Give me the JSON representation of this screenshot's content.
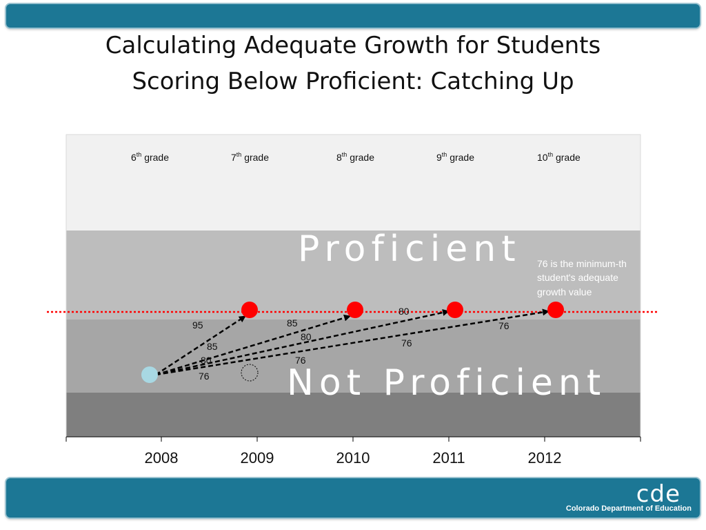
{
  "slide": {
    "title_line1": "Calculating Adequate Growth for Students",
    "title_line2": "Scoring Below Proficient: Catching Up"
  },
  "grades": [
    {
      "base": "6",
      "sup": "th",
      "word": " grade"
    },
    {
      "base": "7",
      "sup": "th",
      "word": " grade"
    },
    {
      "base": "8",
      "sup": "th",
      "word": " grade"
    },
    {
      "base": "9",
      "sup": "th",
      "word": " grade"
    },
    {
      "base": "10",
      "sup": "th",
      "word": " grade"
    }
  ],
  "years": [
    "2008",
    "2009",
    "2010",
    "2011",
    "2012"
  ],
  "bands": {
    "proficient": "Proficient",
    "not_proficient": "Not Proficient"
  },
  "note_lines": [
    "76 is the minimum-th",
    "student's adequate",
    "growth value"
  ],
  "arrow_labels": {
    "to2009": [
      "95",
      "85",
      "80",
      "76"
    ],
    "to2010": [
      "85",
      "80",
      "76"
    ],
    "to2011": [
      "80",
      "76"
    ],
    "to2012": [
      "76"
    ]
  },
  "colors": {
    "bar": "#1c7795",
    "target_point": "#ff0000",
    "start_point": "#a8d8e3",
    "target_line": "#ff0000"
  },
  "footer": {
    "logo": "cde",
    "org": "Colorado Department of Education"
  }
}
